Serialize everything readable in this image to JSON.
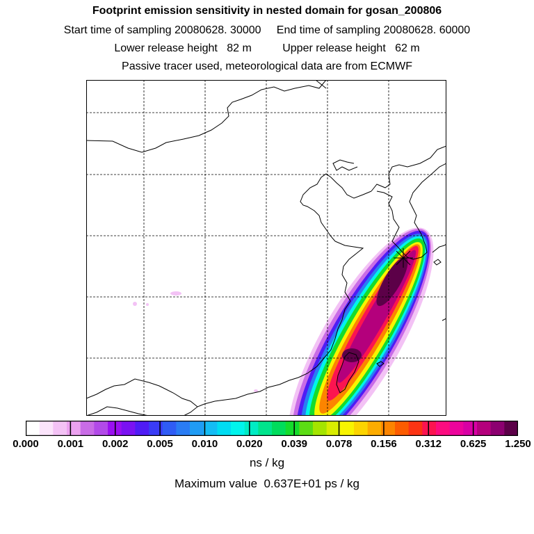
{
  "titles": {
    "main": "Footprint emission sensitivity in nested domain for gosan_200806",
    "sampling": "Start time of sampling 20080628. 30000     End time of sampling 20080628. 60000",
    "release": "Lower release height   82 m          Upper release height   62 m",
    "tracer": "Passive tracer used, meteorological data are from ECMWF"
  },
  "colorbar": {
    "labels": [
      "0.000",
      "0.001",
      "0.002",
      "0.005",
      "0.010",
      "0.020",
      "0.039",
      "0.078",
      "0.156",
      "0.312",
      "0.625",
      "1.250"
    ],
    "colors": [
      "#ffffff",
      "#fbe4fb",
      "#f3c2f5",
      "#eca2f0",
      "#c96ce6",
      "#b24ae8",
      "#9a10f0",
      "#7a12f2",
      "#4f1cf5",
      "#3a3cf6",
      "#2f5cf5",
      "#2a7cf4",
      "#1f9cf4",
      "#14bcf4",
      "#00dcf2",
      "#00f4ec",
      "#00ecc4",
      "#00e48c",
      "#00dc5c",
      "#14dc2c",
      "#5cdc14",
      "#a4e400",
      "#d8ec00",
      "#f8f400",
      "#fcd400",
      "#fcac00",
      "#fc8400",
      "#fc5c00",
      "#fc3414",
      "#fc1450",
      "#fc0c80",
      "#ec049c",
      "#d800a4",
      "#b4007c",
      "#8c0070",
      "#5c0048"
    ],
    "units": "ns / kg",
    "max_value": "Maximum value  0.637E+01 ps / kg"
  },
  "map": {
    "plume": {
      "source_station": "gosan",
      "max_value": 6.37,
      "max_units": "ps / kg",
      "bands": [
        {
          "level": "0.001",
          "color": "#f3c2f5"
        },
        {
          "level": "0.002",
          "color": "#c96ce6"
        },
        {
          "level": "0.005",
          "color": "#4f1cf5"
        },
        {
          "level": "0.010",
          "color": "#2a7cf4"
        },
        {
          "level": "0.020",
          "color": "#00f4ec"
        },
        {
          "level": "0.039",
          "color": "#14dc2c"
        },
        {
          "level": "0.078",
          "color": "#f8f400"
        },
        {
          "level": "0.156",
          "color": "#fc8400"
        },
        {
          "level": "0.312",
          "color": "#fc1450"
        },
        {
          "level": "0.625",
          "color": "#b4007c"
        },
        {
          "level": "1.250",
          "color": "#5c0048"
        }
      ]
    }
  }
}
